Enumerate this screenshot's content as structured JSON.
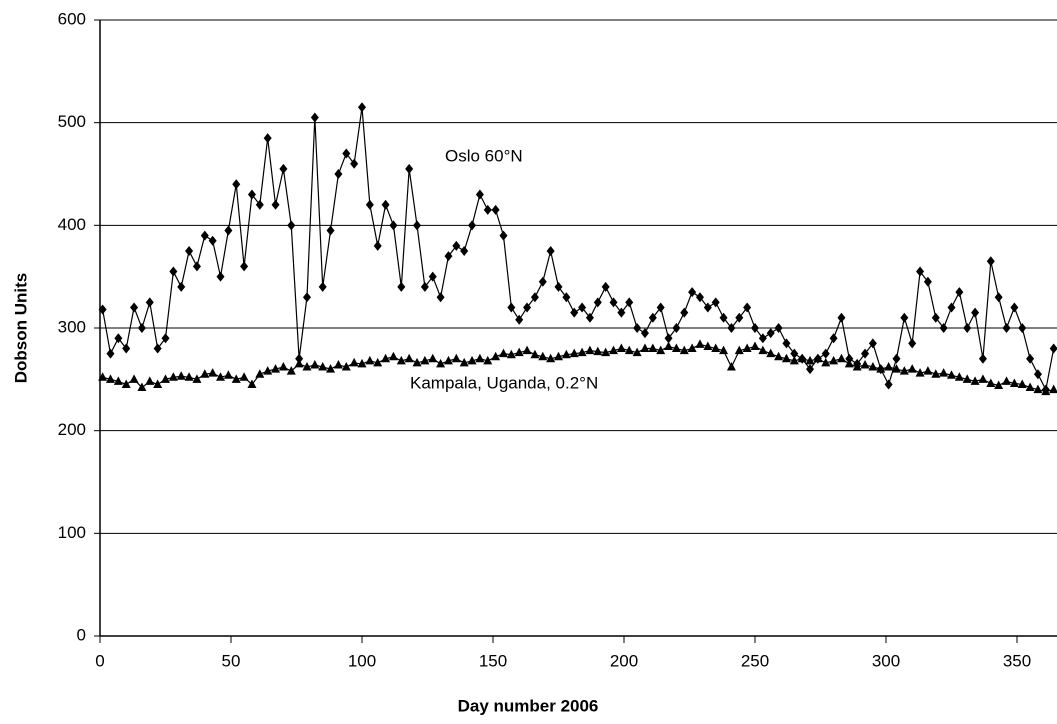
{
  "chart_data": {
    "type": "line",
    "xlabel": "Day number 2006",
    "ylabel": "Dobson Units",
    "annotations": [
      "Oslo 60°N",
      "Kampala, Uganda, 0.2°N"
    ],
    "xlim": [
      0,
      365
    ],
    "ylim": [
      0,
      600
    ],
    "xticks": [
      0,
      50,
      100,
      150,
      200,
      250,
      300,
      350
    ],
    "yticks": [
      0,
      100,
      200,
      300,
      400,
      500,
      600
    ],
    "grid": true,
    "x": [
      1,
      4,
      7,
      10,
      13,
      16,
      19,
      22,
      25,
      28,
      31,
      34,
      37,
      40,
      43,
      46,
      49,
      52,
      55,
      58,
      61,
      64,
      67,
      70,
      73,
      76,
      79,
      82,
      85,
      88,
      91,
      94,
      97,
      100,
      103,
      106,
      109,
      112,
      115,
      118,
      121,
      124,
      127,
      130,
      133,
      136,
      139,
      142,
      145,
      148,
      151,
      154,
      157,
      160,
      163,
      166,
      169,
      172,
      175,
      178,
      181,
      184,
      187,
      190,
      193,
      196,
      199,
      202,
      205,
      208,
      211,
      214,
      217,
      220,
      223,
      226,
      229,
      232,
      235,
      238,
      241,
      244,
      247,
      250,
      253,
      256,
      259,
      262,
      265,
      268,
      271,
      274,
      277,
      280,
      283,
      286,
      289,
      292,
      295,
      298,
      301,
      304,
      307,
      310,
      313,
      316,
      319,
      322,
      325,
      328,
      331,
      334,
      337,
      340,
      343,
      346,
      349,
      352,
      355,
      358,
      361,
      364
    ],
    "series": [
      {
        "name": "Oslo",
        "color": "#000000",
        "marker": "diamond",
        "values": [
          318,
          275,
          290,
          280,
          320,
          300,
          325,
          280,
          290,
          355,
          340,
          375,
          360,
          390,
          385,
          350,
          395,
          440,
          360,
          430,
          420,
          485,
          420,
          455,
          400,
          270,
          330,
          505,
          340,
          395,
          450,
          470,
          460,
          515,
          420,
          380,
          420,
          400,
          340,
          455,
          400,
          340,
          350,
          330,
          370,
          380,
          375,
          400,
          430,
          415,
          415,
          390,
          320,
          308,
          320,
          330,
          345,
          375,
          340,
          330,
          315,
          320,
          310,
          325,
          340,
          325,
          315,
          325,
          300,
          295,
          310,
          320,
          290,
          300,
          315,
          335,
          330,
          320,
          325,
          310,
          300,
          310,
          320,
          300,
          290,
          295,
          300,
          285,
          275,
          270,
          260,
          270,
          275,
          290,
          310,
          270,
          265,
          275,
          285,
          260,
          245,
          270,
          310,
          285,
          355,
          345,
          310,
          300,
          320,
          335,
          300,
          315,
          270,
          365,
          330,
          300,
          320,
          300,
          270,
          255,
          240,
          280
        ]
      },
      {
        "name": "Kampala",
        "color": "#000000",
        "marker": "triangle",
        "values": [
          252,
          250,
          248,
          245,
          250,
          242,
          248,
          245,
          250,
          252,
          253,
          252,
          250,
          255,
          256,
          252,
          254,
          250,
          252,
          245,
          255,
          258,
          260,
          262,
          258,
          265,
          262,
          264,
          262,
          260,
          264,
          262,
          266,
          265,
          268,
          266,
          270,
          272,
          268,
          270,
          266,
          268,
          270,
          265,
          268,
          270,
          266,
          268,
          270,
          268,
          272,
          275,
          274,
          276,
          278,
          274,
          272,
          270,
          272,
          274,
          275,
          276,
          278,
          277,
          276,
          278,
          280,
          278,
          276,
          280,
          280,
          278,
          282,
          280,
          278,
          280,
          284,
          282,
          280,
          278,
          262,
          278,
          280,
          282,
          278,
          275,
          272,
          270,
          268,
          270,
          268,
          270,
          266,
          268,
          270,
          265,
          262,
          264,
          262,
          260,
          262,
          260,
          258,
          260,
          256,
          258,
          255,
          256,
          254,
          252,
          250,
          248,
          250,
          246,
          244,
          248,
          246,
          245,
          242,
          240,
          238,
          240
        ]
      }
    ]
  }
}
